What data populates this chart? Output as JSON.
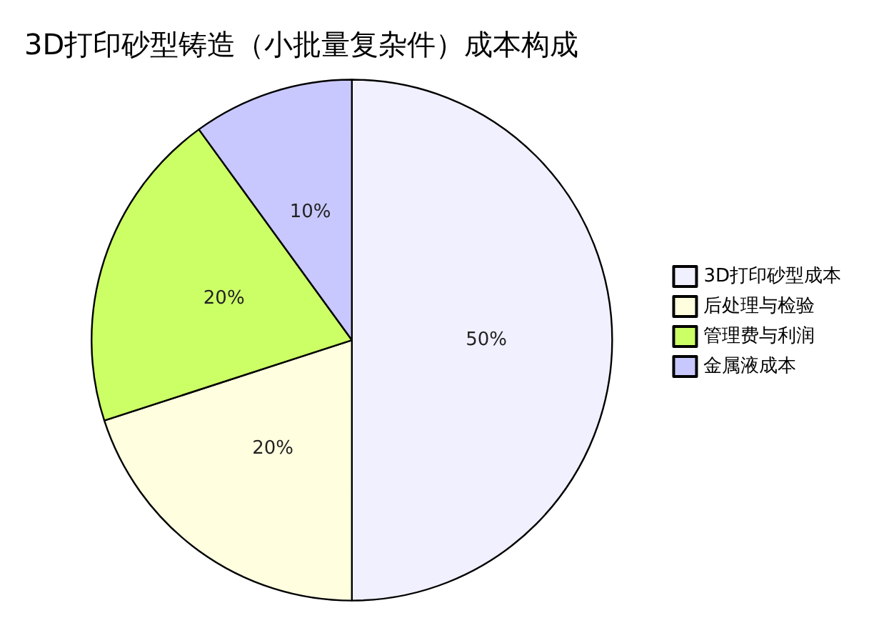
{
  "chart_data": {
    "type": "pie",
    "title": "3D打印砂型铸造（小批量复杂件）成本构成",
    "categories": [
      "3D打印砂型成本",
      "后处理与检验",
      "管理费与利润",
      "金属液成本"
    ],
    "values": [
      50,
      20,
      20,
      10
    ],
    "colors": [
      "#f0f0ff",
      "#ffffe0",
      "#ccff66",
      "#c8c8ff"
    ],
    "value_labels": [
      "50%",
      "20%",
      "20%",
      "10%"
    ],
    "legend": "right"
  }
}
